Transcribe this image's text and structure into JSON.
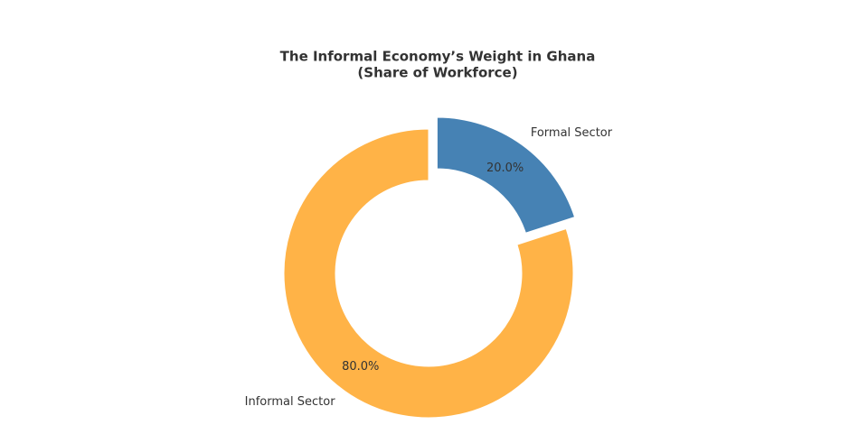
{
  "chart_data": {
    "type": "donut",
    "title": "The Informal Economy’s Weight in Ghana",
    "subtitle": "(Share of Workforce)",
    "categories": [
      "Formal Sector",
      "Informal Sector"
    ],
    "values": [
      20,
      80
    ],
    "value_labels": [
      "20.0%",
      "80.0%"
    ],
    "colors": [
      "#4682b4",
      "#ffb347"
    ],
    "explode": [
      0.1,
      0
    ]
  }
}
